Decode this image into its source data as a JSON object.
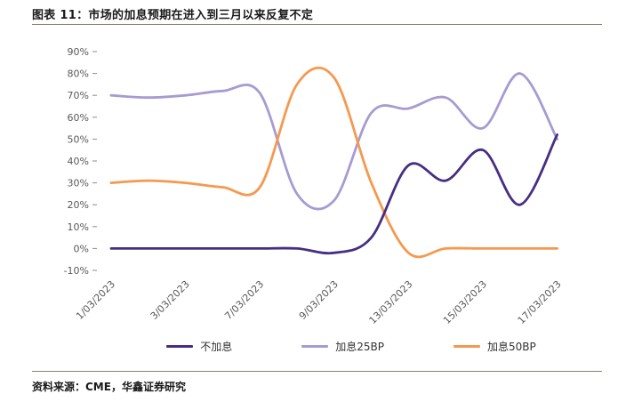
{
  "header": {
    "title": "图表 11：市场的加息预期在进入到三月以来反复不定"
  },
  "footer": {
    "source": "资料来源：CME，华鑫证券研究"
  },
  "colors": {
    "divider": "#8a7f70",
    "axis_text": "#595959",
    "no_hike": "#462E83",
    "hike_25bp": "#A79BD1",
    "hike_50bp": "#F5994E"
  },
  "chart_data": {
    "type": "line",
    "title": "市场的加息预期在进入到三月以来反复不定",
    "ylim": [
      -10,
      90
    ],
    "y_ticks": [
      90,
      80,
      70,
      60,
      50,
      40,
      30,
      20,
      10,
      0,
      -10
    ],
    "y_tick_suffix": "%",
    "x_tick_labels": [
      "1/03/2023",
      "3/03/2023",
      "7/03/2023",
      "9/03/2023",
      "13/03/2023",
      "15/03/2023",
      "17/03/2023"
    ],
    "x_tick_indices": [
      0,
      2,
      4,
      6,
      8,
      10,
      12
    ],
    "n_points": 13,
    "grid": false,
    "legend_position": "bottom",
    "smooth_lines": true,
    "series": [
      {
        "name": "不加息",
        "key": "no-hike",
        "color": "#462E83",
        "values": [
          0,
          0,
          0,
          0,
          0,
          0,
          -2,
          5,
          38,
          31,
          45,
          20,
          52
        ]
      },
      {
        "name": "加息25BP",
        "key": "hike-25bp",
        "color": "#A79BD1",
        "values": [
          70,
          69,
          70,
          72,
          71,
          25,
          22,
          62,
          64,
          69,
          55,
          80,
          50
        ]
      },
      {
        "name": "加息50BP",
        "key": "hike-50bp",
        "color": "#F5994E",
        "values": [
          30,
          31,
          30,
          28,
          28,
          75,
          78,
          30,
          -2,
          0,
          0,
          0,
          0
        ]
      }
    ]
  }
}
